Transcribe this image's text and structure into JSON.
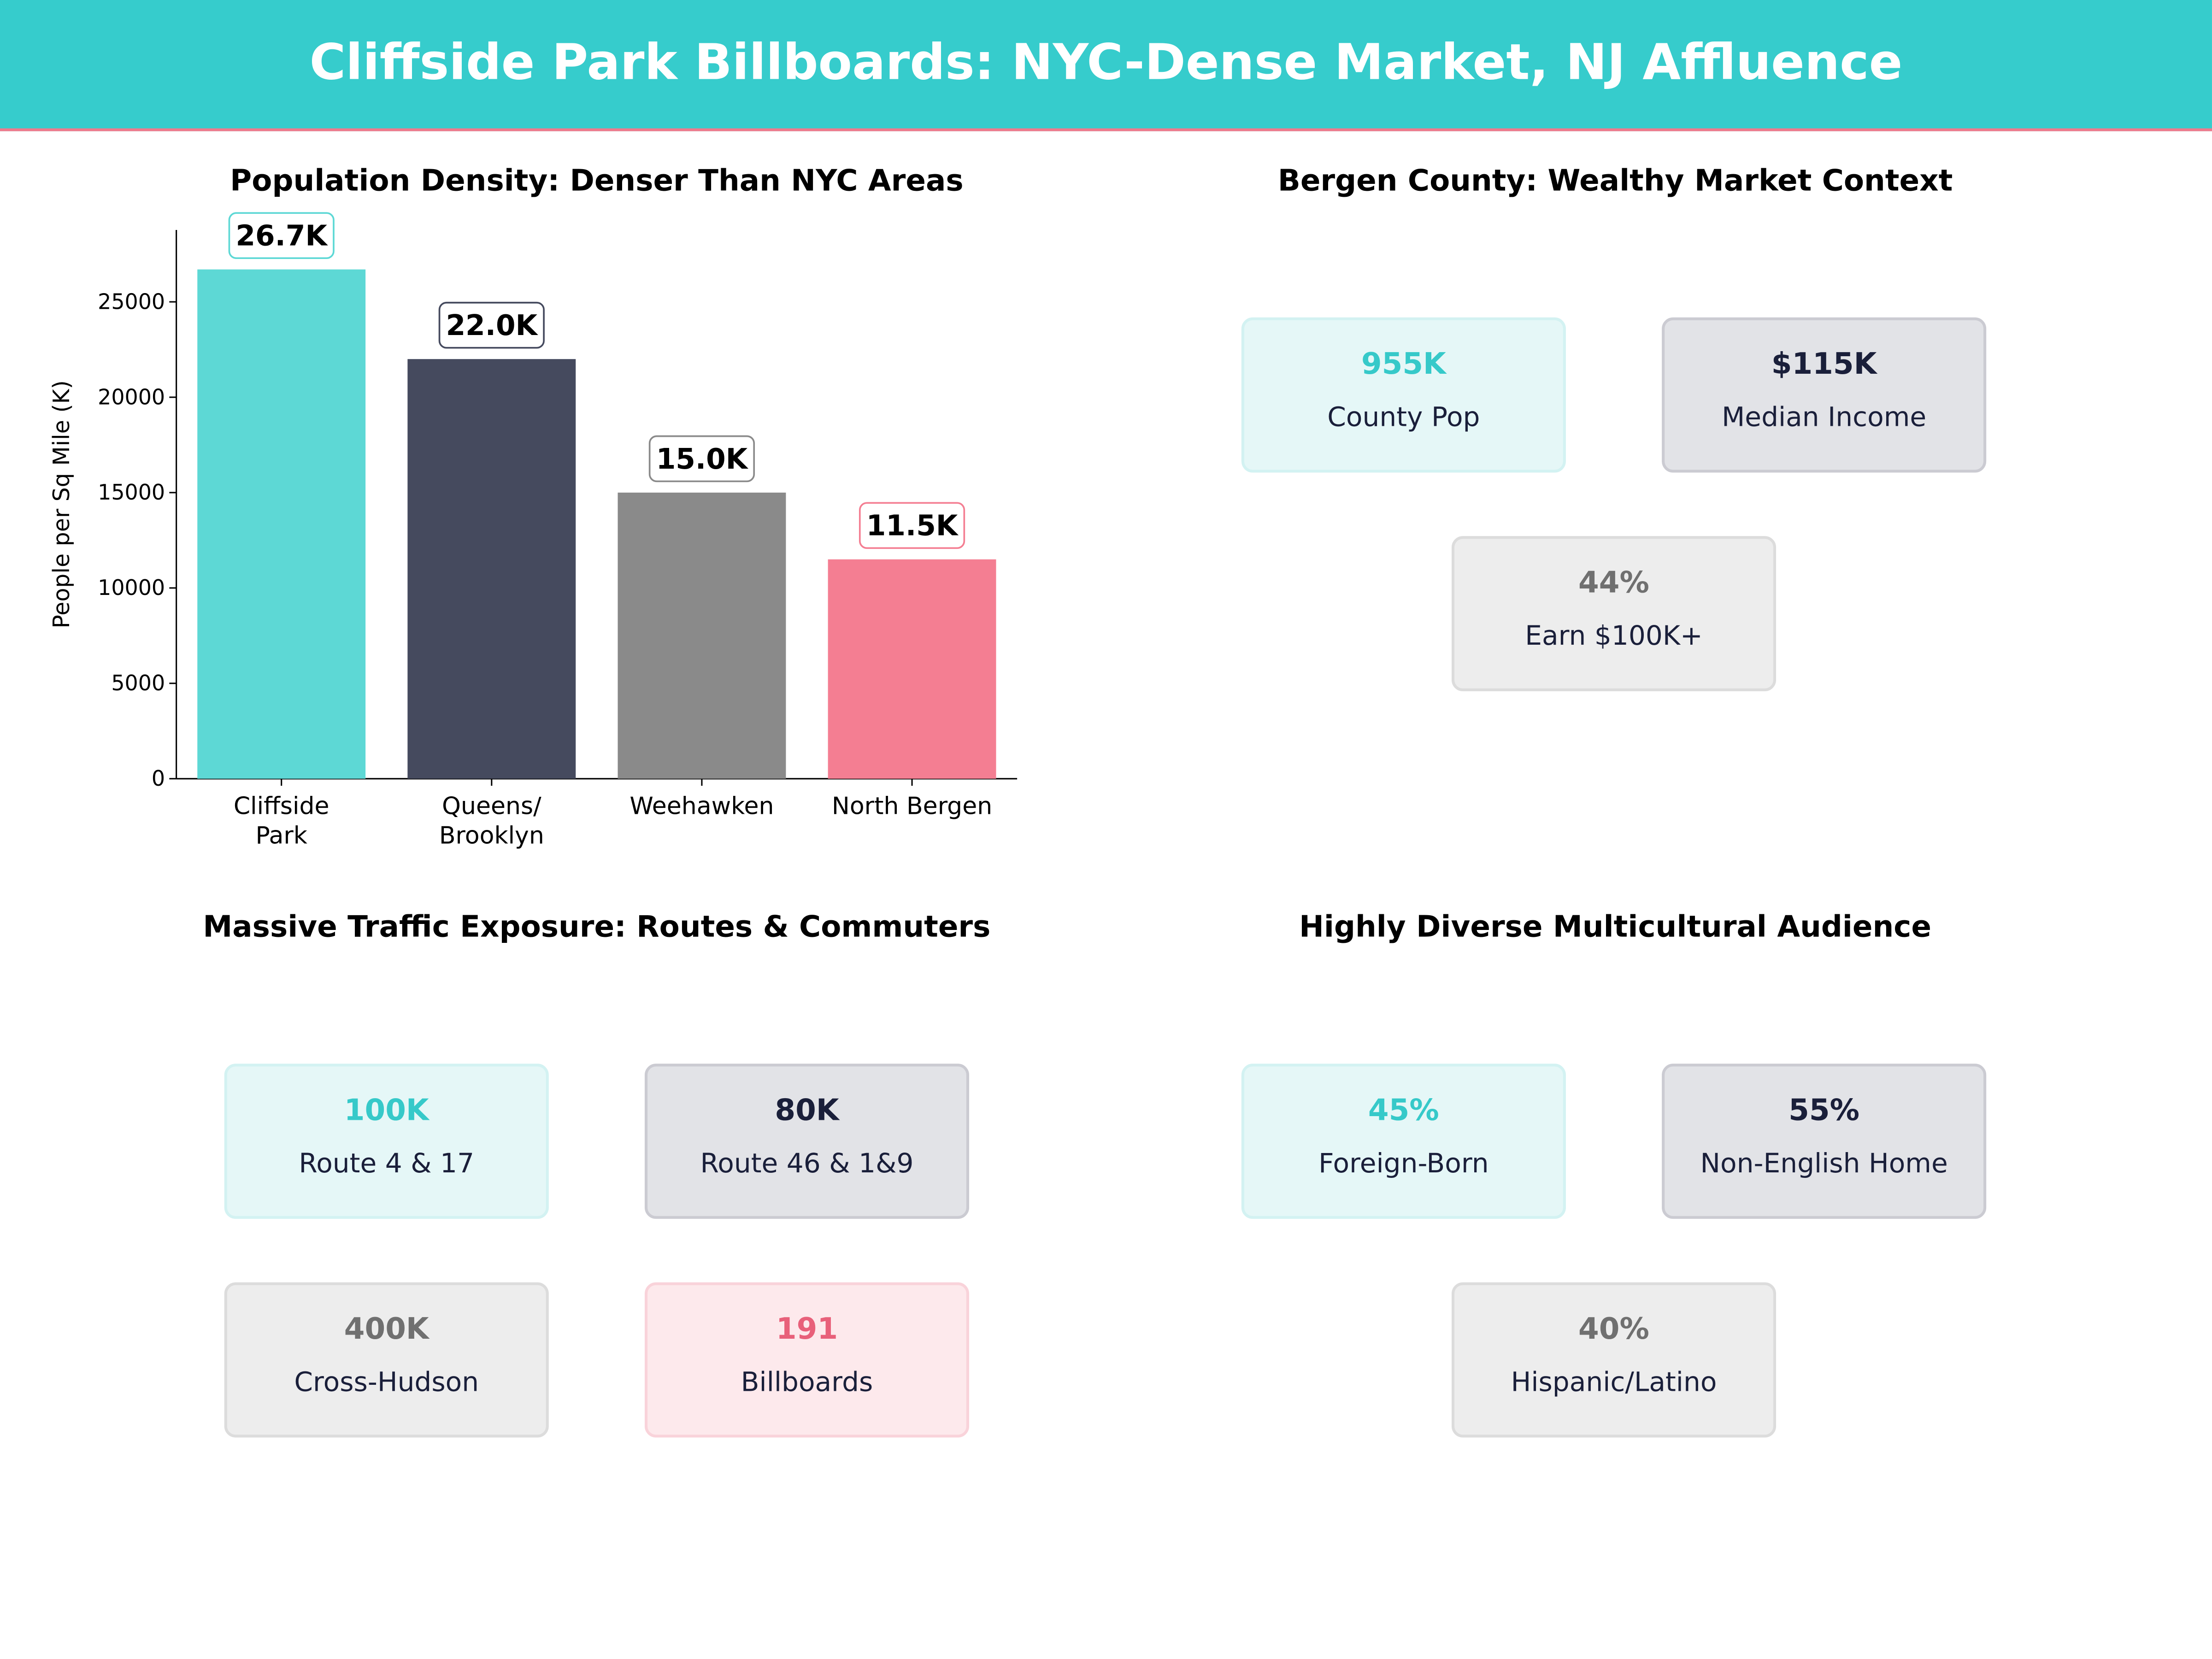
{
  "title": "Cliffside Park Billboards: NYC-Dense Market, NJ Affluence",
  "colors": {
    "header": "#36CCCC",
    "accent_line": "#F07A8C"
  },
  "chart_data": {
    "type": "bar",
    "title": "Population Density: Denser Than NYC Areas",
    "xlabel": "",
    "ylabel": "People per Sq Mile (K)",
    "categories": [
      "Cliffside\nPark",
      "Queens/\nBrooklyn",
      "Weehawken",
      "North Bergen"
    ],
    "values": [
      26700,
      22000,
      15000,
      11500
    ],
    "data_labels": [
      "26.7K",
      "22.0K",
      "15.0K",
      "11.5K"
    ],
    "colors": [
      "#5DD8D5",
      "#454A5E",
      "#8A8A8A",
      "#F47E92"
    ],
    "label_border_colors": [
      "#5DD8D5",
      "#454A5E",
      "#8A8A8A",
      "#F47E92"
    ],
    "ylim": [
      0,
      28770
    ],
    "yticks": [
      0,
      5000,
      10000,
      15000,
      20000,
      25000
    ],
    "grid": false
  },
  "panels": {
    "market": {
      "title": "Bergen County: Wealthy Market Context",
      "cards": [
        {
          "value": "955K",
          "label": "County Pop",
          "style": "teal"
        },
        {
          "value": "$115K",
          "label": "Median Income",
          "style": "navy"
        },
        {
          "value": "44%",
          "label": "Earn $100K+",
          "style": "gray"
        }
      ]
    },
    "traffic": {
      "title": "Massive Traffic Exposure: Routes & Commuters",
      "cards": [
        {
          "value": "100K",
          "label": "Route 4 & 17",
          "style": "teal"
        },
        {
          "value": "80K",
          "label": "Route 46 & 1&9",
          "style": "navy"
        },
        {
          "value": "400K",
          "label": "Cross-Hudson",
          "style": "gray"
        },
        {
          "value": "191",
          "label": "Billboards",
          "style": "pink"
        }
      ]
    },
    "diversity": {
      "title": "Highly Diverse Multicultural Audience",
      "cards": [
        {
          "value": "45%",
          "label": "Foreign-Born",
          "style": "teal"
        },
        {
          "value": "55%",
          "label": "Non-English Home",
          "style": "navy"
        },
        {
          "value": "40%",
          "label": "Hispanic/Latino",
          "style": "gray"
        }
      ]
    }
  }
}
